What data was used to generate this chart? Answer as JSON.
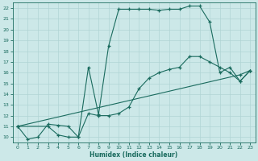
{
  "xlabel": "Humidex (Indice chaleur)",
  "bg_color": "#cce8e8",
  "line_color": "#1a6b5e",
  "xlim": [
    -0.5,
    23.5
  ],
  "ylim": [
    9.5,
    22.5
  ],
  "xticks": [
    0,
    1,
    2,
    3,
    4,
    5,
    6,
    7,
    8,
    9,
    10,
    11,
    12,
    13,
    14,
    15,
    16,
    17,
    18,
    19,
    20,
    21,
    22,
    23
  ],
  "yticks": [
    10,
    11,
    12,
    13,
    14,
    15,
    16,
    17,
    18,
    19,
    20,
    21,
    22
  ],
  "line1_x": [
    0,
    1,
    2,
    3,
    4,
    5,
    6,
    7,
    8,
    9,
    10,
    11,
    12,
    13,
    14,
    15,
    16,
    17,
    18,
    19,
    20,
    21,
    22,
    23
  ],
  "line1_y": [
    11.0,
    9.8,
    10.0,
    11.2,
    11.1,
    11.0,
    10.0,
    16.5,
    12.1,
    18.5,
    21.9,
    21.9,
    21.9,
    21.9,
    21.8,
    21.9,
    21.9,
    22.2,
    22.2,
    20.7,
    16.0,
    16.5,
    15.2,
    16.2
  ],
  "line2_x": [
    0,
    3,
    4,
    5,
    6,
    7,
    8,
    9,
    10,
    11,
    12,
    13,
    14,
    15,
    16,
    17,
    18,
    19,
    20,
    21,
    22,
    23
  ],
  "line2_y": [
    11.0,
    11.0,
    10.2,
    10.0,
    10.0,
    12.2,
    12.0,
    12.0,
    12.2,
    12.8,
    14.5,
    15.5,
    16.0,
    16.3,
    16.5,
    17.5,
    17.5,
    17.0,
    16.5,
    16.0,
    15.2,
    16.2
  ],
  "line3_x": [
    0,
    22,
    23
  ],
  "line3_y": [
    11.0,
    15.8,
    16.2
  ]
}
